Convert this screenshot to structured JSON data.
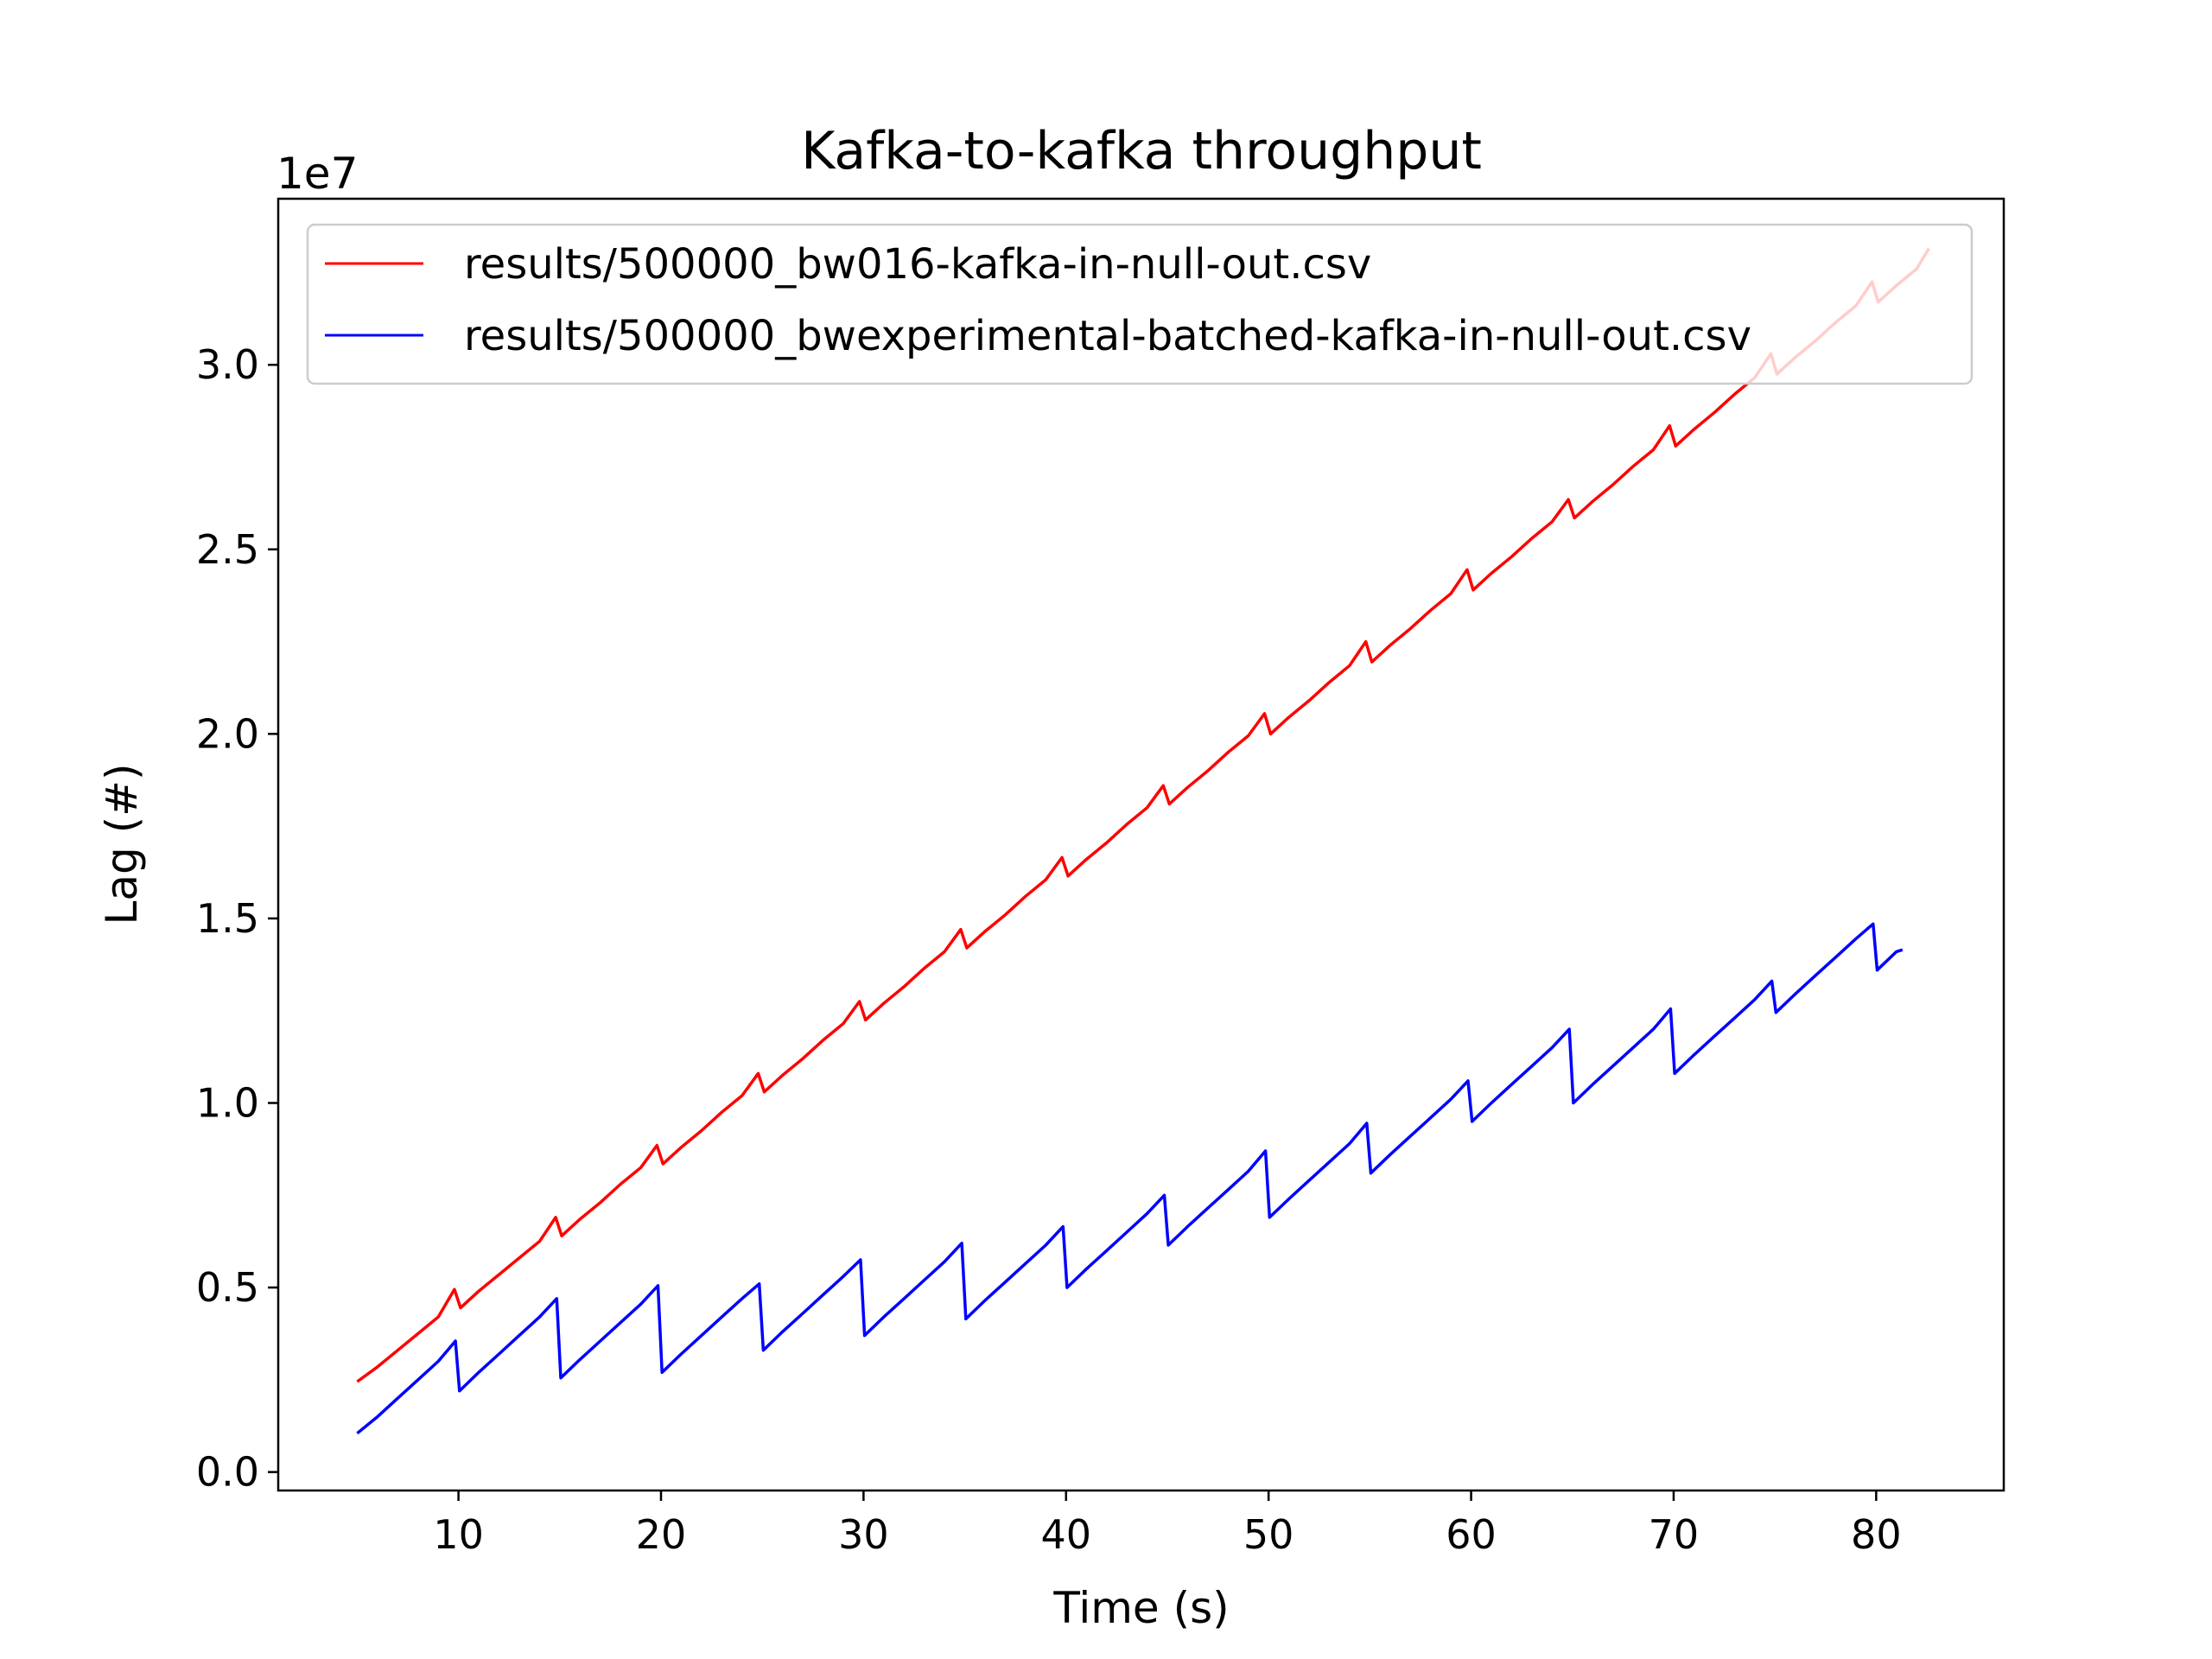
{
  "chart_data": {
    "type": "line",
    "title": "Kafka-to-kafka throughput",
    "xlabel": "Time (s)",
    "ylabel": "Lag (#)",
    "y_offset_text": "1e7",
    "y_multiplier": 10000000,
    "xlim": [
      1.1,
      86.3
    ],
    "ylim": [
      -0.05,
      3.45
    ],
    "xticks": [
      10,
      20,
      30,
      40,
      50,
      60,
      70,
      80
    ],
    "xtick_labels": [
      "10",
      "20",
      "30",
      "40",
      "50",
      "60",
      "70",
      "80"
    ],
    "yticks": [
      0.0,
      0.5,
      1.0,
      1.5,
      2.0,
      2.5,
      3.0
    ],
    "ytick_labels": [
      "0.0",
      "0.5",
      "1.0",
      "1.5",
      "2.0",
      "2.5",
      "3.0"
    ],
    "grid": false,
    "legend_position": "top-left",
    "series": [
      {
        "name": "results/500000_bw016-kafka-in-null-out.csv",
        "color": "#ff0000",
        "x": [
          5.0,
          6.0,
          7.0,
          8.0,
          9.0,
          9.8,
          10.1,
          11.0,
          12.0,
          13.0,
          14.0,
          14.8,
          15.1,
          16.0,
          17.0,
          18.0,
          19.0,
          19.8,
          20.1,
          21.0,
          22.0,
          23.0,
          24.0,
          24.8,
          25.1,
          26.0,
          27.0,
          28.0,
          29.0,
          29.8,
          30.1,
          31.0,
          32.0,
          33.0,
          34.0,
          34.8,
          35.1,
          36.0,
          37.0,
          38.0,
          39.0,
          39.8,
          40.1,
          41.0,
          42.0,
          43.0,
          44.0,
          44.8,
          45.1,
          46.0,
          47.0,
          48.0,
          49.0,
          49.8,
          50.1,
          51.0,
          52.0,
          53.0,
          54.0,
          54.8,
          55.1,
          56.0,
          57.0,
          58.0,
          59.0,
          59.8,
          60.1,
          61.0,
          62.0,
          63.0,
          64.0,
          64.8,
          65.1,
          66.0,
          67.0,
          68.0,
          69.0,
          69.8,
          70.1,
          71.0,
          72.0,
          73.0,
          74.0,
          74.8,
          75.1,
          76.0,
          77.0,
          78.0,
          79.0,
          79.8,
          80.1,
          81.0,
          82.0,
          82.6
        ],
        "values": [
          0.245,
          0.285,
          0.33,
          0.375,
          0.42,
          0.495,
          0.445,
          0.49,
          0.535,
          0.58,
          0.625,
          0.69,
          0.64,
          0.685,
          0.73,
          0.78,
          0.825,
          0.885,
          0.835,
          0.88,
          0.925,
          0.975,
          1.02,
          1.08,
          1.03,
          1.075,
          1.12,
          1.17,
          1.215,
          1.275,
          1.225,
          1.27,
          1.315,
          1.365,
          1.41,
          1.47,
          1.42,
          1.465,
          1.51,
          1.56,
          1.605,
          1.665,
          1.615,
          1.66,
          1.705,
          1.755,
          1.8,
          1.86,
          1.81,
          1.855,
          1.9,
          1.95,
          1.995,
          2.055,
          2.0,
          2.045,
          2.09,
          2.14,
          2.185,
          2.25,
          2.195,
          2.24,
          2.285,
          2.335,
          2.38,
          2.445,
          2.39,
          2.435,
          2.48,
          2.53,
          2.575,
          2.635,
          2.585,
          2.63,
          2.675,
          2.725,
          2.77,
          2.835,
          2.78,
          2.825,
          2.87,
          2.92,
          2.965,
          3.03,
          2.975,
          3.02,
          3.065,
          3.115,
          3.16,
          3.225,
          3.17,
          3.215,
          3.26,
          3.315
        ]
      },
      {
        "name": "results/500000_bwexperimental-batched-kafka-in-null-out.csv",
        "color": "#0000ff",
        "x": [
          5.0,
          6.0,
          7.0,
          8.0,
          9.0,
          9.85,
          10.05,
          11.0,
          12.0,
          13.0,
          14.0,
          14.85,
          15.05,
          16.0,
          17.0,
          18.0,
          19.0,
          19.85,
          20.05,
          21.0,
          22.0,
          23.0,
          24.0,
          24.85,
          25.05,
          26.0,
          27.0,
          28.0,
          29.0,
          29.85,
          30.05,
          31.0,
          32.0,
          33.0,
          34.0,
          34.85,
          35.05,
          36.0,
          37.0,
          38.0,
          39.0,
          39.85,
          40.05,
          41.0,
          42.0,
          43.0,
          44.0,
          44.85,
          45.05,
          46.0,
          47.0,
          48.0,
          49.0,
          49.85,
          50.05,
          51.0,
          52.0,
          53.0,
          54.0,
          54.85,
          55.05,
          56.0,
          57.0,
          58.0,
          59.0,
          59.85,
          60.05,
          61.0,
          62.0,
          63.0,
          64.0,
          64.85,
          65.05,
          66.0,
          67.0,
          68.0,
          69.0,
          69.85,
          70.05,
          71.0,
          72.0,
          73.0,
          74.0,
          74.85,
          75.05,
          76.0,
          77.0,
          78.0,
          79.0,
          79.85,
          80.05,
          81.0,
          81.3
        ],
        "values": [
          0.105,
          0.15,
          0.2,
          0.25,
          0.3,
          0.355,
          0.22,
          0.27,
          0.32,
          0.37,
          0.42,
          0.47,
          0.255,
          0.305,
          0.355,
          0.405,
          0.455,
          0.505,
          0.27,
          0.32,
          0.37,
          0.42,
          0.47,
          0.51,
          0.33,
          0.38,
          0.43,
          0.48,
          0.53,
          0.575,
          0.37,
          0.42,
          0.47,
          0.52,
          0.57,
          0.62,
          0.415,
          0.465,
          0.515,
          0.565,
          0.615,
          0.665,
          0.5,
          0.55,
          0.6,
          0.65,
          0.7,
          0.75,
          0.615,
          0.665,
          0.715,
          0.765,
          0.815,
          0.87,
          0.69,
          0.74,
          0.79,
          0.84,
          0.89,
          0.945,
          0.81,
          0.86,
          0.91,
          0.96,
          1.01,
          1.06,
          0.95,
          1.0,
          1.05,
          1.1,
          1.15,
          1.2,
          1.0,
          1.05,
          1.1,
          1.15,
          1.2,
          1.255,
          1.08,
          1.13,
          1.18,
          1.23,
          1.28,
          1.33,
          1.245,
          1.295,
          1.345,
          1.395,
          1.445,
          1.485,
          1.36,
          1.41,
          1.415
        ]
      }
    ]
  }
}
